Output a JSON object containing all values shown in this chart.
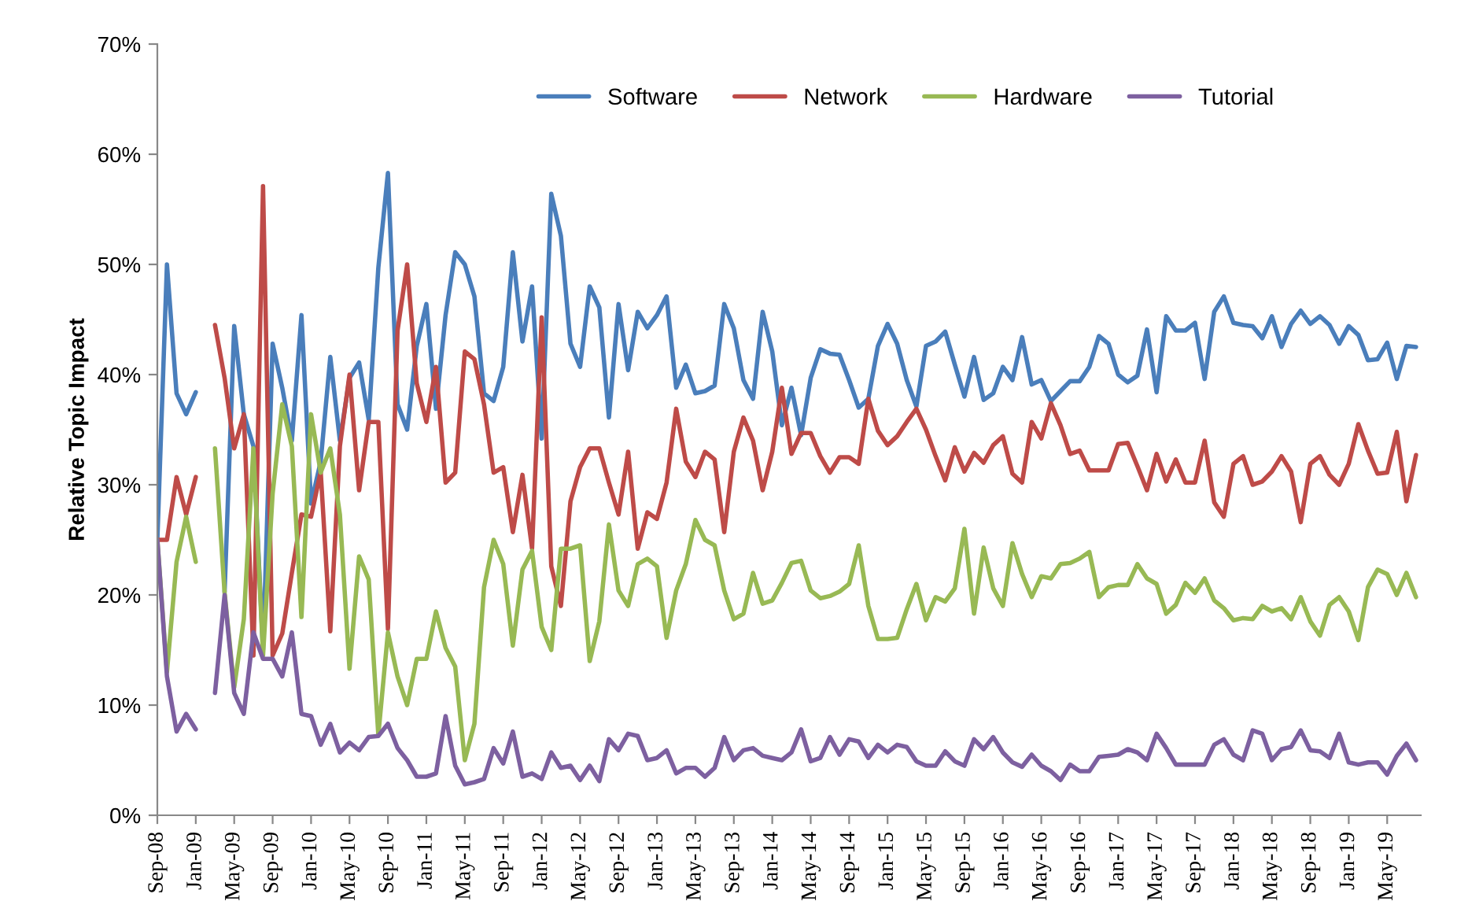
{
  "chart_data": {
    "type": "line",
    "ylabel": "Relative Topic Impact",
    "categories": [
      "Sep-08",
      null,
      null,
      null,
      "Jan-09",
      null,
      null,
      null,
      "May-09",
      null,
      null,
      null,
      "Sep-09",
      null,
      null,
      null,
      "Jan-10",
      null,
      null,
      null,
      "May-10",
      null,
      null,
      null,
      "Sep-10",
      null,
      null,
      null,
      "Jan-11",
      null,
      null,
      null,
      "May-11",
      null,
      null,
      null,
      "Sep-11",
      null,
      null,
      null,
      "Jan-12",
      null,
      null,
      null,
      "May-12",
      null,
      null,
      null,
      "Sep-12",
      null,
      null,
      null,
      "Jan-13",
      null,
      null,
      null,
      "May-13",
      null,
      null,
      null,
      "Sep-13",
      null,
      null,
      null,
      "Jan-14",
      null,
      null,
      null,
      "May-14",
      null,
      null,
      null,
      "Sep-14",
      null,
      null,
      null,
      "Jan-15",
      null,
      null,
      null,
      "May-15",
      null,
      null,
      null,
      "Sep-15",
      null,
      null,
      null,
      "Jan-16",
      null,
      null,
      null,
      "May-16",
      null,
      null,
      null,
      "Sep-16",
      null,
      null,
      null,
      "Jan-17",
      null,
      null,
      null,
      "May-17",
      null,
      null,
      null,
      "Sep-17",
      null,
      null,
      null,
      "Jan-18",
      null,
      null,
      null,
      "May-18",
      null,
      null,
      null,
      "Sep-18",
      null,
      null,
      null,
      "Jan-19",
      null,
      null,
      null,
      "May-19",
      null,
      null,
      null
    ],
    "series": [
      {
        "name": "Software",
        "color": "#4a7ebb",
        "values": [
          25.0,
          50.0,
          38.3,
          36.4,
          38.4,
          null,
          null,
          20.3,
          44.4,
          36.4,
          33.5,
          15.0,
          42.8,
          38.8,
          34.0,
          45.4,
          28.3,
          32.1,
          41.6,
          34.0,
          39.7,
          41.1,
          35.9,
          49.7,
          58.3,
          37.3,
          35.0,
          42.6,
          46.4,
          36.9,
          45.4,
          51.1,
          50.0,
          47.1,
          38.3,
          37.6,
          40.7,
          51.1,
          43.0,
          48.0,
          34.2,
          56.4,
          52.6,
          42.8,
          40.7,
          48.0,
          46.1,
          36.1,
          46.4,
          40.4,
          45.7,
          44.2,
          45.4,
          47.1,
          38.8,
          40.9,
          38.3,
          38.5,
          39.0,
          46.4,
          44.2,
          39.5,
          37.8,
          45.7,
          42.1,
          35.4,
          38.8,
          34.5,
          39.7,
          42.3,
          41.9,
          41.8,
          39.5,
          37.0,
          37.8,
          42.6,
          44.6,
          42.8,
          39.5,
          37.1,
          42.6,
          43.0,
          43.9,
          40.9,
          38.0,
          41.6,
          37.7,
          38.3,
          40.7,
          39.5,
          43.4,
          39.1,
          39.5,
          37.6,
          38.5,
          39.4,
          39.4,
          40.7,
          43.5,
          42.8,
          40.0,
          39.3,
          39.9,
          44.1,
          38.4,
          45.3,
          44.0,
          44.0,
          44.7,
          39.6,
          45.7,
          47.1,
          44.7,
          44.5,
          44.4,
          43.3,
          45.3,
          42.5,
          44.6,
          45.8,
          44.6,
          45.3,
          44.5,
          42.8,
          44.4,
          43.6,
          41.3,
          41.4,
          42.9,
          39.6,
          42.6,
          42.5
        ]
      },
      {
        "name": "Network",
        "color": "#be4b48",
        "values": [
          25.0,
          25.0,
          30.7,
          27.3,
          30.7,
          null,
          44.5,
          39.7,
          33.3,
          36.4,
          14.5,
          57.1,
          14.5,
          16.5,
          22.0,
          27.3,
          27.1,
          31.2,
          16.7,
          33.5,
          40.0,
          29.5,
          35.7,
          35.7,
          16.9,
          44.0,
          50.0,
          39.2,
          35.7,
          40.7,
          30.2,
          31.1,
          42.1,
          41.4,
          37.3,
          31.1,
          31.6,
          25.7,
          30.9,
          24.2,
          45.2,
          22.6,
          19.0,
          28.5,
          31.6,
          33.3,
          33.3,
          30.2,
          27.3,
          33.0,
          24.2,
          27.5,
          26.9,
          30.2,
          36.9,
          32.1,
          30.7,
          33.0,
          32.3,
          25.7,
          33.0,
          36.1,
          34.0,
          29.5,
          33.0,
          38.8,
          32.8,
          34.7,
          34.7,
          32.6,
          31.1,
          32.5,
          32.5,
          31.9,
          37.8,
          34.9,
          33.6,
          34.4,
          35.7,
          36.9,
          35.0,
          32.6,
          30.4,
          33.4,
          31.2,
          32.9,
          32.0,
          33.6,
          34.4,
          31.0,
          30.2,
          35.7,
          34.2,
          37.4,
          35.4,
          32.8,
          33.1,
          31.3,
          31.3,
          31.3,
          33.7,
          33.8,
          31.7,
          29.5,
          32.8,
          30.3,
          32.3,
          30.2,
          30.2,
          34.0,
          28.4,
          27.1,
          31.9,
          32.6,
          30.0,
          30.3,
          31.2,
          32.6,
          31.2,
          26.6,
          31.9,
          32.6,
          30.9,
          30.0,
          31.9,
          35.5,
          33.1,
          31.0,
          31.1,
          34.8,
          28.5,
          32.7
        ]
      },
      {
        "name": "Hardware",
        "color": "#98b954",
        "values": [
          25.0,
          13.0,
          23.0,
          27.1,
          23.0,
          null,
          33.3,
          20.2,
          11.6,
          17.8,
          33.3,
          14.5,
          29.2,
          37.3,
          33.5,
          18.0,
          36.4,
          31.1,
          33.3,
          27.3,
          13.3,
          23.5,
          21.4,
          7.3,
          16.6,
          12.6,
          10.0,
          14.2,
          14.2,
          18.5,
          15.2,
          13.5,
          5.0,
          8.3,
          20.7,
          25.0,
          22.8,
          15.4,
          22.3,
          24.0,
          17.1,
          15.0,
          24.2,
          24.2,
          24.5,
          14.0,
          17.6,
          26.4,
          20.4,
          19.0,
          22.8,
          23.3,
          22.6,
          16.1,
          20.4,
          22.8,
          26.8,
          25.0,
          24.5,
          20.4,
          17.8,
          18.3,
          22.0,
          19.2,
          19.5,
          21.1,
          22.9,
          23.1,
          20.4,
          19.7,
          19.9,
          20.3,
          21.0,
          24.5,
          19.0,
          16.0,
          16.0,
          16.1,
          18.7,
          21.0,
          17.7,
          19.8,
          19.4,
          20.6,
          26.0,
          18.3,
          24.3,
          20.6,
          19.0,
          24.7,
          21.9,
          19.8,
          21.7,
          21.5,
          22.8,
          22.9,
          23.3,
          23.9,
          19.8,
          20.7,
          20.9,
          20.9,
          22.8,
          21.5,
          21.0,
          18.3,
          19.1,
          21.1,
          20.2,
          21.5,
          19.5,
          18.8,
          17.7,
          17.9,
          17.8,
          19.0,
          18.5,
          18.8,
          17.8,
          19.8,
          17.6,
          16.3,
          19.1,
          19.8,
          18.5,
          15.9,
          20.7,
          22.3,
          21.9,
          20.0,
          22.0,
          19.8
        ]
      },
      {
        "name": "Tutorial",
        "color": "#7d60a0",
        "values": [
          25.0,
          12.6,
          7.6,
          9.2,
          7.8,
          null,
          11.1,
          20.0,
          11.1,
          9.2,
          16.6,
          14.2,
          14.2,
          12.6,
          16.6,
          9.2,
          9.0,
          6.4,
          8.3,
          5.7,
          6.6,
          5.9,
          7.1,
          7.2,
          8.3,
          6.1,
          5.0,
          3.5,
          3.5,
          3.8,
          9.0,
          4.5,
          2.8,
          3.0,
          3.3,
          6.1,
          4.7,
          7.6,
          3.5,
          3.8,
          3.3,
          5.7,
          4.3,
          4.5,
          3.2,
          4.5,
          3.1,
          6.9,
          5.9,
          7.4,
          7.2,
          5.0,
          5.2,
          5.9,
          3.8,
          4.3,
          4.3,
          3.5,
          4.3,
          7.1,
          5.0,
          5.9,
          6.1,
          5.4,
          5.2,
          5.0,
          5.7,
          7.8,
          4.9,
          5.2,
          7.1,
          5.5,
          6.9,
          6.7,
          5.2,
          6.4,
          5.7,
          6.4,
          6.2,
          4.9,
          4.5,
          4.5,
          5.8,
          4.9,
          4.5,
          6.9,
          6.0,
          7.1,
          5.7,
          4.8,
          4.4,
          5.5,
          4.5,
          4.0,
          3.2,
          4.6,
          4.0,
          4.0,
          5.3,
          5.4,
          5.5,
          6.0,
          5.7,
          5.0,
          7.4,
          6.1,
          4.6,
          4.6,
          4.6,
          4.6,
          6.4,
          6.9,
          5.5,
          5.0,
          7.7,
          7.4,
          5.0,
          6.0,
          6.2,
          7.7,
          5.9,
          5.8,
          5.2,
          7.4,
          4.8,
          4.6,
          4.8,
          4.8,
          3.7,
          5.4,
          6.5,
          5.0
        ]
      }
    ],
    "ylim": [
      0,
      70
    ],
    "yticks": [
      {
        "value": 0,
        "label": "0%"
      },
      {
        "value": 10,
        "label": "10%"
      },
      {
        "value": 20,
        "label": "20%"
      },
      {
        "value": 30,
        "label": "30%"
      },
      {
        "value": 40,
        "label": "40%"
      },
      {
        "value": 50,
        "label": "50%"
      },
      {
        "value": 60,
        "label": "60%"
      },
      {
        "value": 70,
        "label": "70%"
      }
    ],
    "grid": false,
    "legend": "top right",
    "marker": "none",
    "line_style": "solid"
  }
}
